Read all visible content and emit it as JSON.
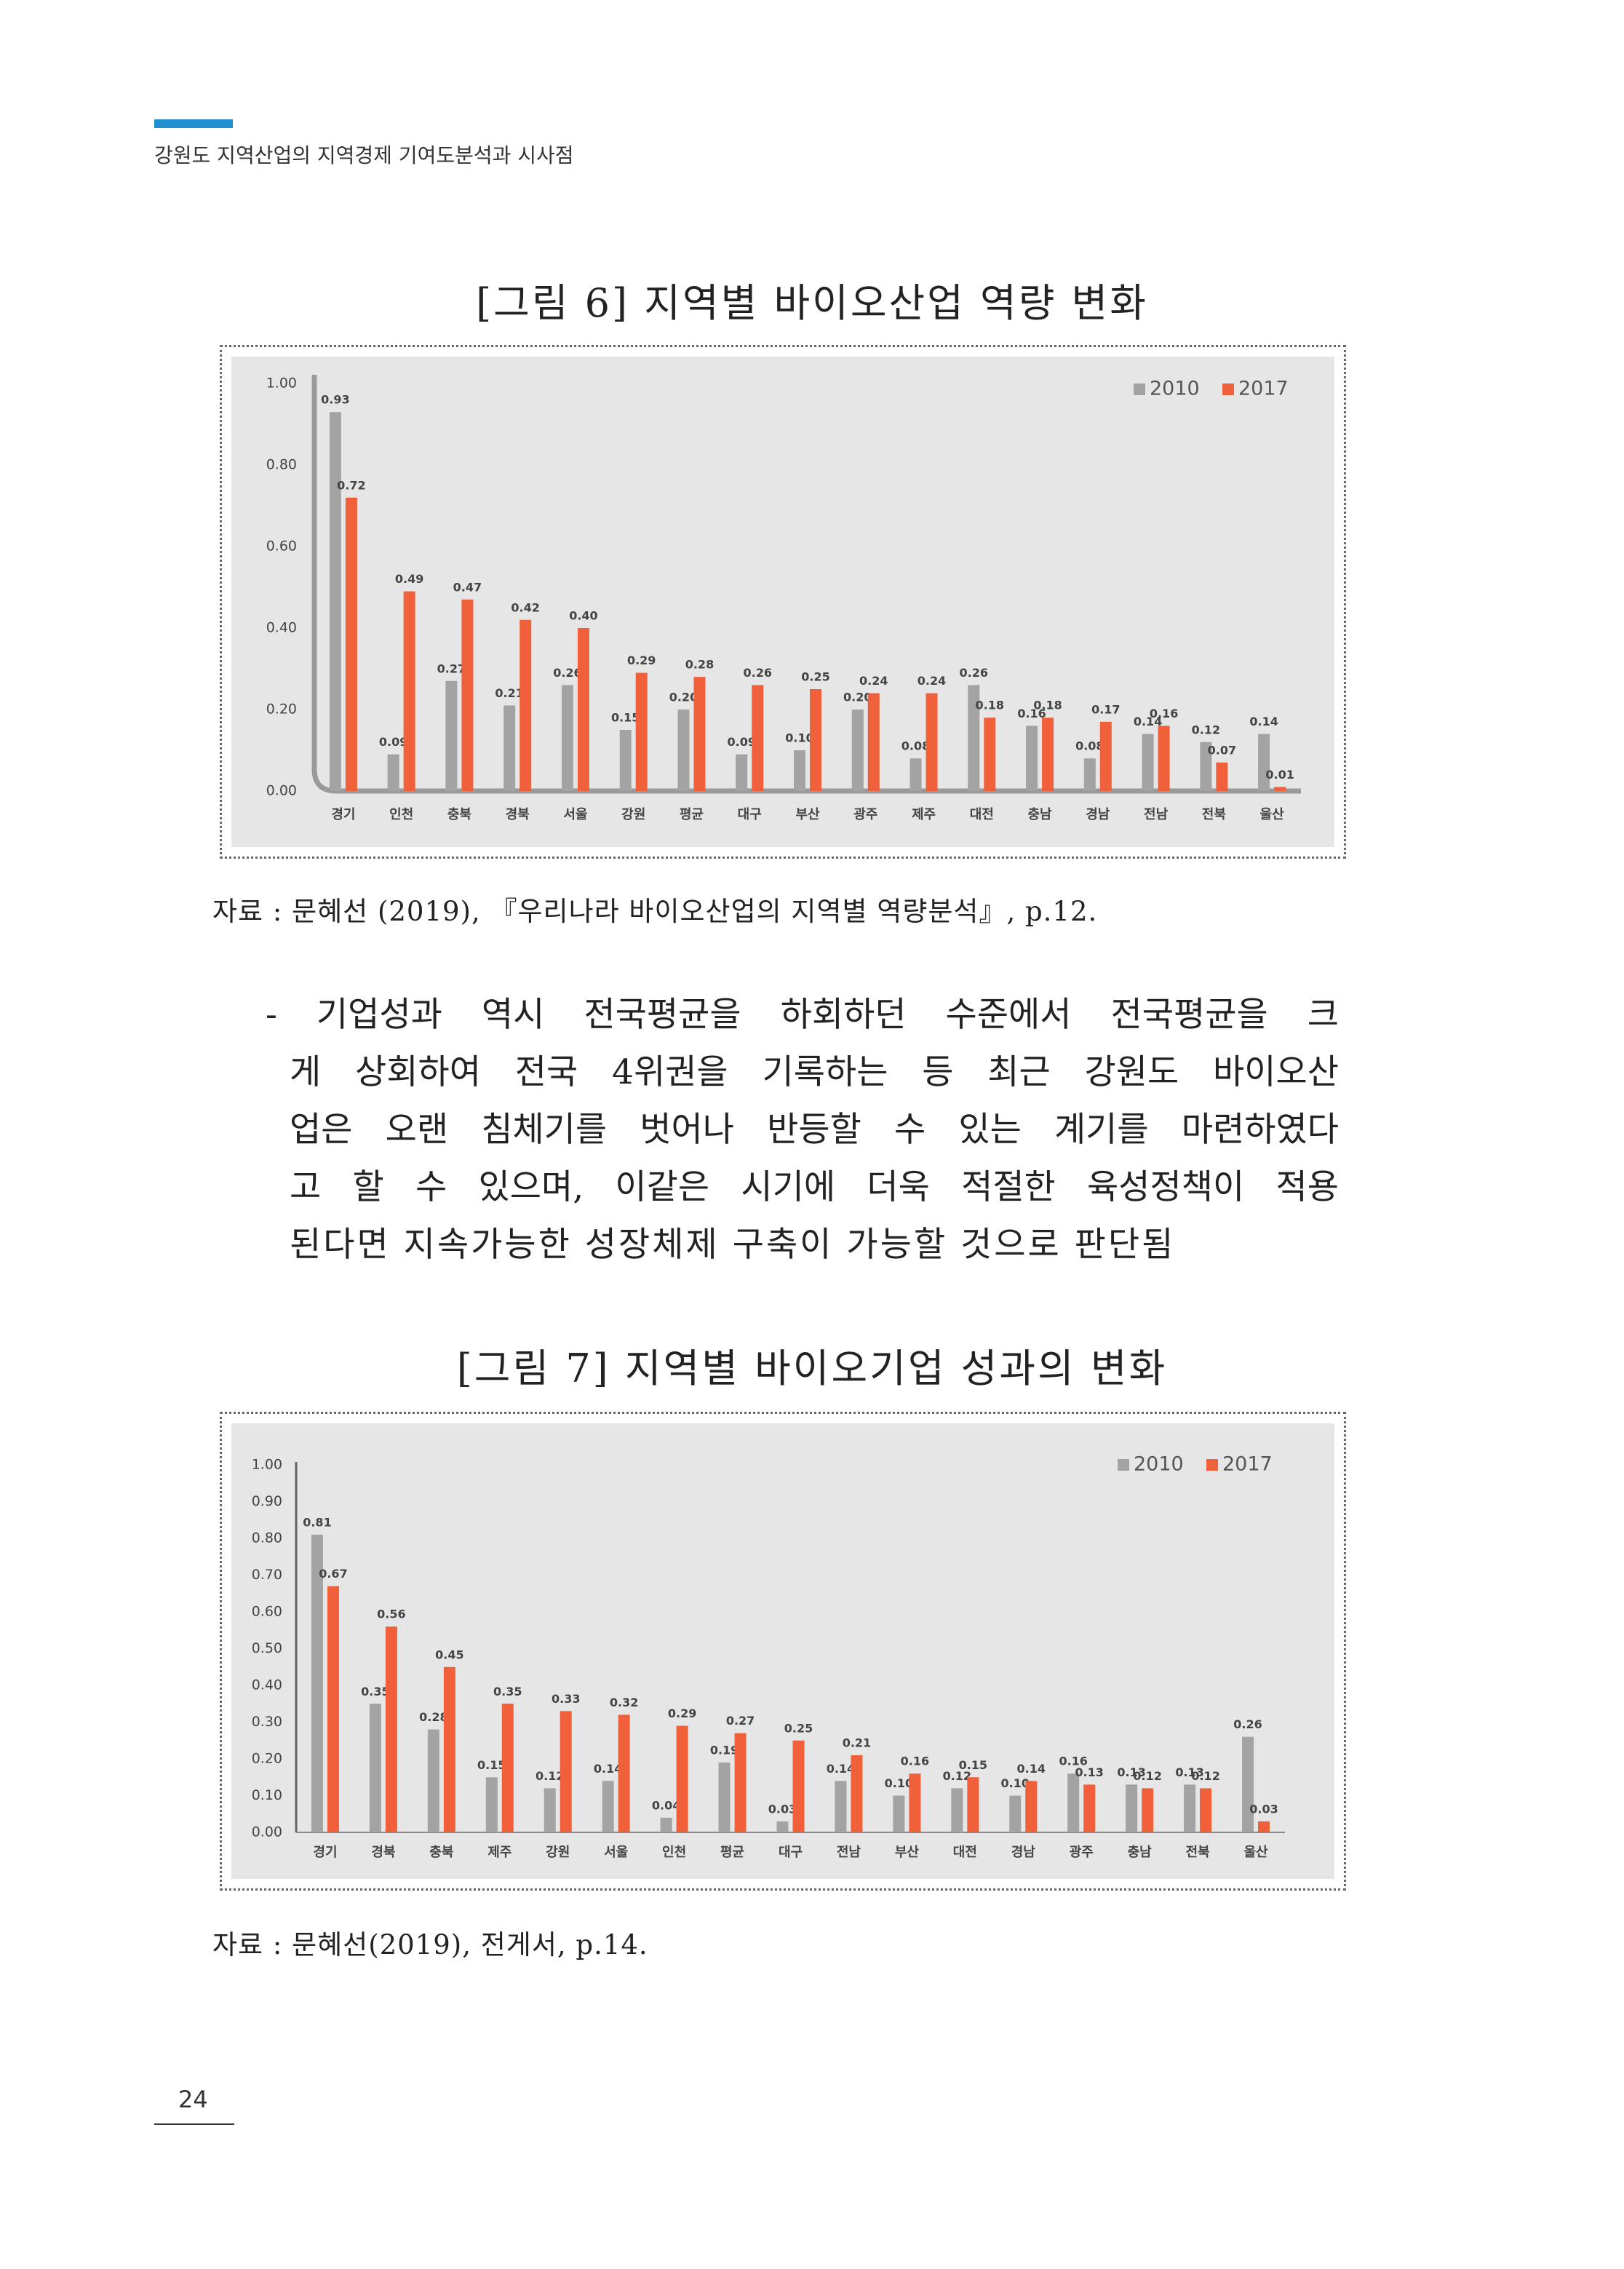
{
  "header": {
    "title": "강원도 지역산업의 지역경제 기여도분석과 시사점"
  },
  "chart_data": [
    {
      "type": "bar",
      "title": "[그림 6] 지역별 바이오산업 역량 변화",
      "categories": [
        "경기",
        "인천",
        "충북",
        "경북",
        "서울",
        "강원",
        "평균",
        "대구",
        "부산",
        "광주",
        "제주",
        "대전",
        "충남",
        "경남",
        "전남",
        "전북",
        "울산"
      ],
      "series": [
        {
          "name": "2010",
          "color": "#a3a3a3",
          "values": [
            0.93,
            0.09,
            0.27,
            0.21,
            0.26,
            0.15,
            0.2,
            0.09,
            0.1,
            0.2,
            0.08,
            0.26,
            0.16,
            0.08,
            0.14,
            0.12,
            0.14
          ],
          "value_labels": [
            "0.93",
            "0.09",
            "0.27",
            "0.21",
            "0.26",
            "0.15",
            "0.20",
            "0.09",
            "0.10",
            "0.20",
            "0.08",
            "0.26",
            "0.16",
            "0.08",
            "0.14",
            "0.12",
            "0.14"
          ]
        },
        {
          "name": "2017",
          "color": "#f0613b",
          "values": [
            0.72,
            0.49,
            0.47,
            0.42,
            0.4,
            0.29,
            0.28,
            0.26,
            0.25,
            0.24,
            0.24,
            0.18,
            0.18,
            0.17,
            0.16,
            0.07,
            0.01
          ],
          "value_labels": [
            "0.72",
            "0.49",
            "0.47",
            "0.42",
            "0.40",
            "0.29",
            "0.28",
            "0.26",
            "0.25",
            "0.24",
            "0.24",
            "0.18",
            "0.18",
            "0.17",
            "0.16",
            "0.07",
            "0.01"
          ]
        }
      ],
      "ylim": [
        0,
        1
      ],
      "yticks": [
        {
          "value": 0,
          "label": "0.00"
        },
        {
          "value": 0.2,
          "label": "0.20"
        },
        {
          "value": 0.4,
          "label": "0.40"
        },
        {
          "value": 0.6,
          "label": "0.60"
        },
        {
          "value": 0.8,
          "label": "0.80"
        },
        {
          "value": 1,
          "label": "1.00"
        }
      ],
      "legend": "upper right",
      "grid": false
    },
    {
      "type": "bar",
      "title": "[그림 7] 지역별 바이오기업 성과의 변화",
      "categories": [
        "경기",
        "경북",
        "충북",
        "제주",
        "강원",
        "서울",
        "인천",
        "평균",
        "대구",
        "전남",
        "부산",
        "대전",
        "경남",
        "광주",
        "충남",
        "전북",
        "울산"
      ],
      "series": [
        {
          "name": "2010",
          "color": "#a3a3a3",
          "values": [
            0.81,
            0.35,
            0.28,
            0.15,
            0.12,
            0.14,
            0.04,
            0.19,
            0.03,
            0.14,
            0.1,
            0.12,
            0.1,
            0.16,
            0.13,
            0.13,
            0.26
          ],
          "value_labels": [
            "0.81",
            "0.35",
            "0.28",
            "0.15",
            "0.12",
            "0.14",
            "0.04",
            "0.19",
            "0.03",
            "0.14",
            "0.10",
            "0.12",
            "0.10",
            "0.16",
            "0.13",
            "0.13",
            "0.26"
          ]
        },
        {
          "name": "2017",
          "color": "#f0613b",
          "values": [
            0.67,
            0.56,
            0.45,
            0.35,
            0.33,
            0.32,
            0.29,
            0.27,
            0.25,
            0.21,
            0.16,
            0.15,
            0.14,
            0.13,
            0.12,
            0.12,
            0.03
          ],
          "value_labels": [
            "0.67",
            "0.56",
            "0.45",
            "0.35",
            "0.33",
            "0.32",
            "0.29",
            "0.27",
            "0.25",
            "0.21",
            "0.16",
            "0.15",
            "0.14",
            "0.13",
            "0.12",
            "0.12",
            "0.03"
          ]
        }
      ],
      "ylim": [
        0,
        1
      ],
      "yticks": [
        {
          "value": 0,
          "label": "0.00"
        },
        {
          "value": 0.1,
          "label": "0.10"
        },
        {
          "value": 0.2,
          "label": "0.20"
        },
        {
          "value": 0.3,
          "label": "0.30"
        },
        {
          "value": 0.4,
          "label": "0.40"
        },
        {
          "value": 0.5,
          "label": "0.50"
        },
        {
          "value": 0.6,
          "label": "0.60"
        },
        {
          "value": 0.7,
          "label": "0.70"
        },
        {
          "value": 0.8,
          "label": "0.80"
        },
        {
          "value": 0.9,
          "label": "0.90"
        },
        {
          "value": 1,
          "label": "1.00"
        }
      ],
      "legend": "upper right",
      "grid": false
    }
  ],
  "sources": [
    "자료 : 문혜선 (2019), 『우리나라 바이오산업의 지역별 역량분석』, p.12.",
    "자료 : 문혜선(2019), 전게서, p.14."
  ],
  "body": {
    "lines": [
      "- 기업성과 역시 전국평균을 하회하던 수준에서 전국평균을 크",
      "게 상회하여 전국 4위권을 기록하는 등 최근 강원도 바이오산",
      "업은 오랜 침체기를 벗어나 반등할 수 있는 계기를 마련하였다",
      "고 할 수 있으며, 이같은 시기에 더욱 적절한 육성정책이 적용",
      "된다면 지속가능한 성장체제 구축이 가능할 것으로 판단됨"
    ]
  },
  "page_number": "24"
}
